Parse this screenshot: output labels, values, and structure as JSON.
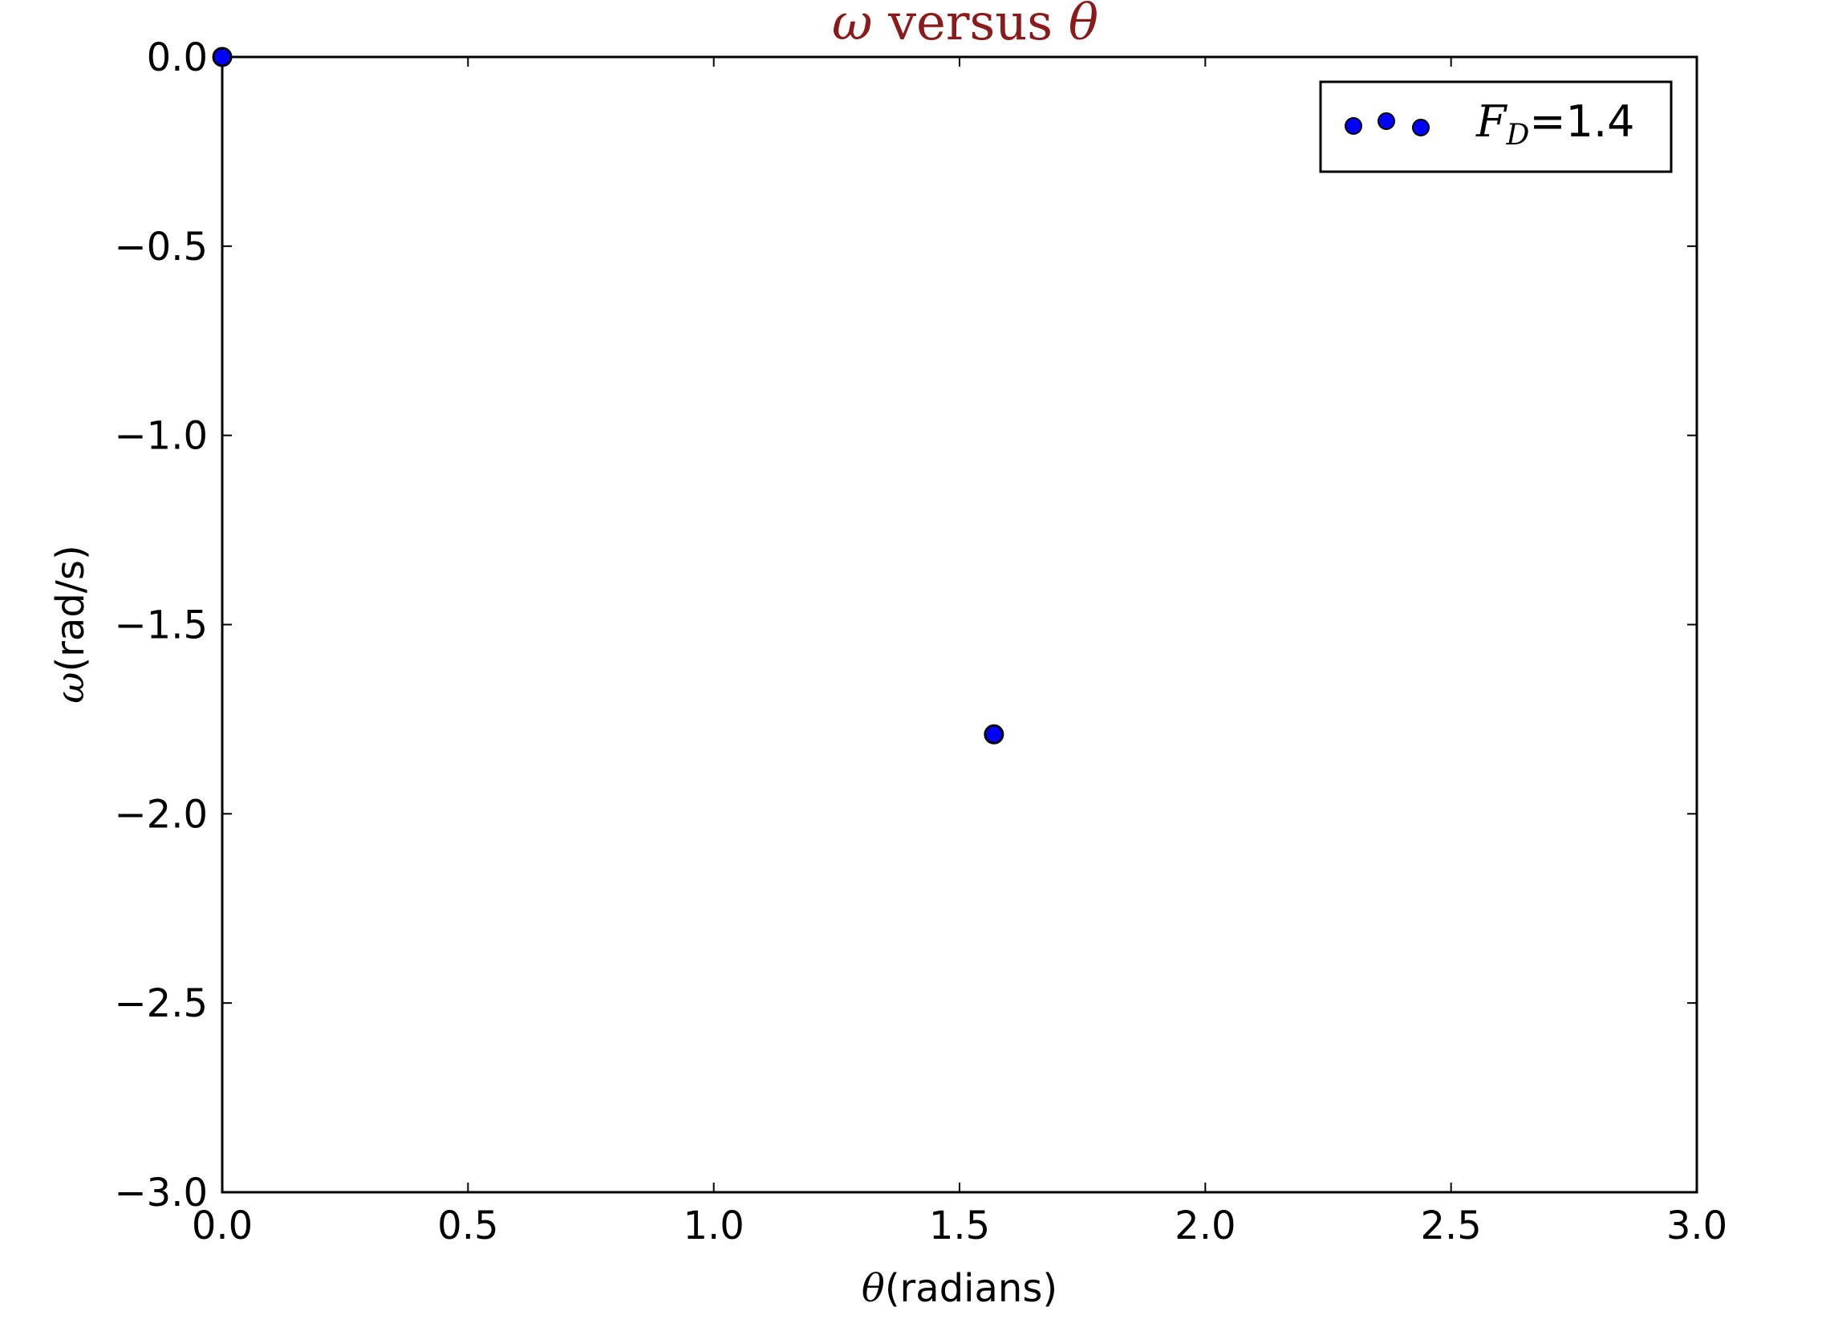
{
  "chart_data": {
    "type": "scatter",
    "title": {
      "omega": "ω",
      "text": " versus ",
      "theta": "θ",
      "color": "#8b1a1a"
    },
    "xlabel": {
      "symbol": "θ",
      "text": "(radians)"
    },
    "ylabel": {
      "symbol": "ω",
      "text": "(rad/s)"
    },
    "xlim": [
      0.0,
      3.0
    ],
    "ylim": [
      -3.0,
      0.0
    ],
    "xticks": [
      0.0,
      0.5,
      1.0,
      1.5,
      2.0,
      2.5,
      3.0
    ],
    "xtick_labels": [
      "0.0",
      "0.5",
      "1.0",
      "1.5",
      "2.0",
      "2.5",
      "3.0"
    ],
    "yticks": [
      0.0,
      -0.5,
      -1.0,
      -1.5,
      -2.0,
      -2.5,
      -3.0
    ],
    "ytick_labels": [
      "0.0",
      "−0.5",
      "−1.0",
      "−1.5",
      "−2.0",
      "−2.5",
      "−3.0"
    ],
    "grid": false,
    "legend": {
      "position": "top-right",
      "symbol": "F",
      "subscript": "D",
      "value": "=1.4"
    },
    "series": [
      {
        "color": "#0000ff",
        "points": [
          {
            "x": 0.0,
            "y": 0.0
          },
          {
            "x": 1.57,
            "y": -1.79
          }
        ]
      }
    ]
  }
}
